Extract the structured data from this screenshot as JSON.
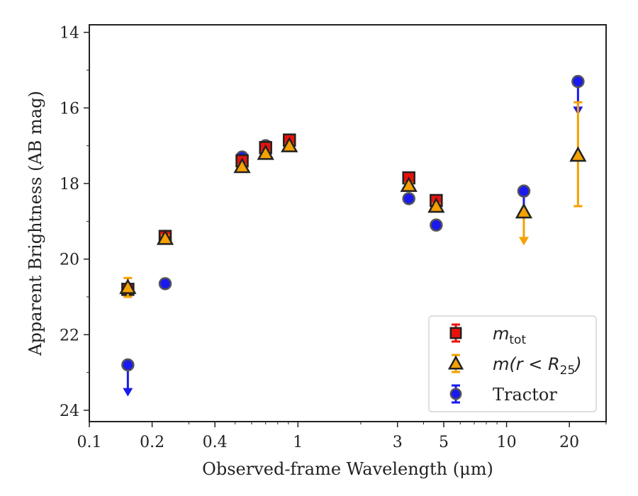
{
  "chart_data": {
    "type": "scatter",
    "xlabel": "Observed-frame Wavelength (μm)",
    "ylabel": "Apparent Brightness (AB mag)",
    "xscale": "log",
    "xlim": [
      0.1,
      30
    ],
    "ylim": [
      24.3,
      13.8
    ],
    "y_inverted": true,
    "xticks": [
      {
        "value": 0.1,
        "label": "0.1"
      },
      {
        "value": 0.2,
        "label": "0.2"
      },
      {
        "value": 0.4,
        "label": "0.4"
      },
      {
        "value": 1,
        "label": "1"
      },
      {
        "value": 3,
        "label": "3"
      },
      {
        "value": 5,
        "label": "5"
      },
      {
        "value": 10,
        "label": "10"
      },
      {
        "value": 20,
        "label": "20"
      }
    ],
    "yticks": [
      14,
      16,
      18,
      20,
      22,
      24
    ],
    "legend_position": "lower-right",
    "series": [
      {
        "name": "m_tot",
        "name_main": "m",
        "name_sub": "tot",
        "marker": "square",
        "color": "#e8120c",
        "points": [
          {
            "x": 0.153,
            "y": 20.8,
            "err": 0.05
          },
          {
            "x": 0.231,
            "y": 19.4,
            "err": 0.05
          },
          {
            "x": 0.54,
            "y": 17.4,
            "err": 0.04
          },
          {
            "x": 0.7,
            "y": 17.05,
            "err": 0.03
          },
          {
            "x": 0.91,
            "y": 16.85,
            "err": 0.03
          },
          {
            "x": 3.4,
            "y": 17.85,
            "err": 0.04
          },
          {
            "x": 4.6,
            "y": 18.45,
            "err": 0.04
          }
        ]
      },
      {
        "name": "m(r<R_25)",
        "name_main": "m(r < R",
        "name_sub": "25",
        "name_tail": ")",
        "marker": "triangle",
        "color": "#f5a100",
        "points": [
          {
            "x": 0.153,
            "y": 20.75,
            "err": 0.25
          },
          {
            "x": 0.231,
            "y": 19.45,
            "err": 0.08
          },
          {
            "x": 0.54,
            "y": 17.55,
            "err": 0.05
          },
          {
            "x": 0.7,
            "y": 17.2,
            "err": 0.04
          },
          {
            "x": 0.91,
            "y": 17.0,
            "err": 0.04
          },
          {
            "x": 3.4,
            "y": 18.05,
            "err": 0.06
          },
          {
            "x": 4.6,
            "y": 18.6,
            "err": 0.07
          },
          {
            "x": 12.1,
            "y": 18.75,
            "err": 0.0,
            "upper_limit": true,
            "limit_y": 19.6
          },
          {
            "x": 22.0,
            "y": 17.25,
            "err_low": 1.35,
            "err_high": 1.4
          }
        ]
      },
      {
        "name": "Tractor",
        "marker": "circle",
        "color": "#1a1aee",
        "points": [
          {
            "x": 0.153,
            "y": 22.8,
            "upper_limit": true,
            "limit_y": 23.6
          },
          {
            "x": 0.231,
            "y": 20.65,
            "err": 0.05
          },
          {
            "x": 0.54,
            "y": 17.3,
            "err": 0.04
          },
          {
            "x": 0.7,
            "y": 17.0,
            "err": 0.03
          },
          {
            "x": 0.91,
            "y": 16.85,
            "err": 0.03
          },
          {
            "x": 3.4,
            "y": 18.4,
            "err": 0.05
          },
          {
            "x": 4.6,
            "y": 19.1,
            "err": 0.05
          },
          {
            "x": 12.1,
            "y": 18.2,
            "upper_limit": true,
            "limit_y": 18.95
          },
          {
            "x": 22.0,
            "y": 15.3,
            "upper_limit": true,
            "limit_y": 16.15
          }
        ]
      }
    ]
  }
}
